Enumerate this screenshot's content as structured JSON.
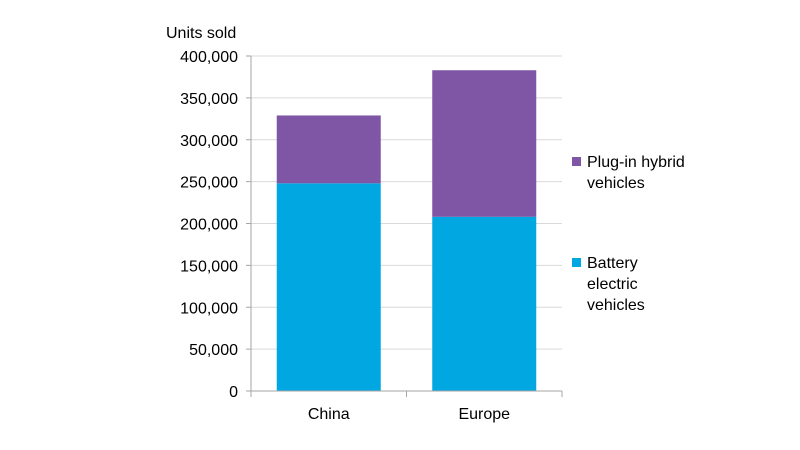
{
  "chart_data": {
    "type": "bar",
    "stacked": true,
    "title": "",
    "xlabel": "",
    "ylabel": "Units sold",
    "categories": [
      "China",
      "Europe"
    ],
    "series": [
      {
        "name": "Battery electric vehicles",
        "values": [
          248000,
          208000
        ],
        "color": "#00A7E1"
      },
      {
        "name": "Plug-in hybrid vehicles",
        "values": [
          81000,
          175000
        ],
        "color": "#7E56A5"
      }
    ],
    "ylim": [
      0,
      400000
    ],
    "yticks": [
      0,
      50000,
      100000,
      150000,
      200000,
      250000,
      300000,
      350000,
      400000
    ],
    "ytick_labels": [
      "0",
      "50,000",
      "100,000",
      "150,000",
      "200,000",
      "250,000",
      "300,000",
      "350,000",
      "400,000"
    ],
    "grid": true,
    "legend_position": "right",
    "legend": [
      {
        "lines": [
          "Plug-in hybrid",
          "vehicles"
        ],
        "color": "#7E56A5"
      },
      {
        "lines": [
          "Battery",
          "electric",
          "vehicles"
        ],
        "color": "#00A7E1"
      }
    ]
  }
}
